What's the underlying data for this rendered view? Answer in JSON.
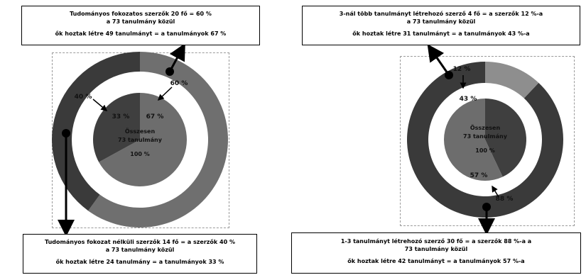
{
  "colors": {
    "dark": "#3a3a3a",
    "mid": "#6f6f6f",
    "light": "#8e8e8e",
    "pieDark": "#3f3f3f",
    "pieMid": "#6d6d6d",
    "pieLight": "#8a8a8a"
  },
  "left": {
    "top_box": {
      "line1": "Tudományos fokozatos szerzők 20 fő = 60 %",
      "line2": "a 73 tanulmány közül",
      "line3": "ők hoztak létre 49 tanulmányt = a tanulmányok 67 %"
    },
    "bottom_box": {
      "line1": "Tudományos fokozat nélküli szerzők 14 fő = a szerzők 40 %",
      "line2": "a 73 tanulmány közül",
      "line3": "ők hoztak létre 24 tanulmány = a tanulmányok 33 %"
    },
    "center": {
      "line1": "Összesen",
      "line2": "73 tanulmány",
      "line3": "100 %"
    }
  },
  "right": {
    "top_box": {
      "line1": "3-nál több tanulmányt létrehozó szerző 4 fő = a szerzők 12 %-a",
      "line2": "a 73 tanulmány közül",
      "line3": "ők hoztak létre 31 tanulmányt = a tanulmányok 43 %-a"
    },
    "bottom_box": {
      "line1": "1-3 tanulmányt létrehozó szerző 30 fő = a szerzők 88 %-a  a",
      "line2": "73 tanulmány közül",
      "line3": "ők hoztak létre 42 tanulmányt  = a tanulmányok 57 %-a"
    },
    "center": {
      "line1": "Összesen",
      "line2": "73 tanulmány",
      "line3": "100 %"
    }
  },
  "chart_data": [
    {
      "type": "pie",
      "ring": [
        {
          "label": "60 %",
          "value": 60,
          "color": "#6f6f6f"
        },
        {
          "label": "40 %",
          "value": 40,
          "color": "#3a3a3a"
        }
      ],
      "pie": [
        {
          "label": "67 %",
          "value": 67,
          "color": "#6d6d6d"
        },
        {
          "label": "33 %",
          "value": 33,
          "color": "#3f3f3f"
        }
      ]
    },
    {
      "type": "pie",
      "ring": [
        {
          "label": "88 %",
          "value": 88,
          "color": "#3a3a3a"
        },
        {
          "label": "12 %",
          "value": 12,
          "color": "#8e8e8e"
        }
      ],
      "pie": [
        {
          "label": "43 %",
          "value": 43,
          "color": "#3f3f3f"
        },
        {
          "label": "57 %",
          "value": 57,
          "color": "#6d6d6d"
        }
      ]
    }
  ]
}
